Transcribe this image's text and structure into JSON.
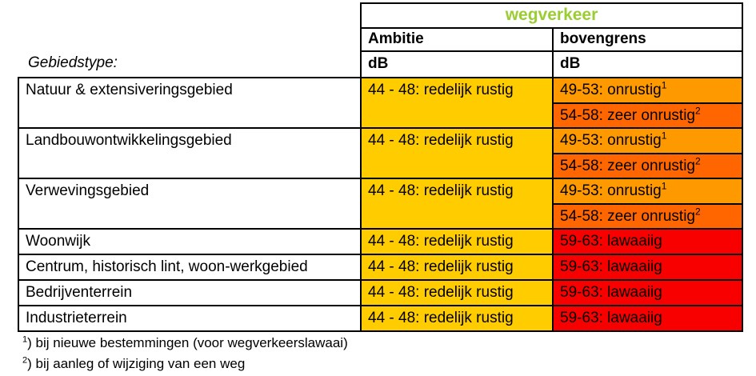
{
  "colors": {
    "header_green": "#9acd32",
    "ambition_yellow": "#ffcc00",
    "upper_orange": "#ff9900",
    "upper_dark_orange": "#ff6600",
    "upper_red": "#f80000",
    "border_black": "#000000"
  },
  "header": {
    "group_title": "wegverkeer",
    "ambitie_label": "Ambitie",
    "bovengrens_label": "bovengrens",
    "unit": "dB",
    "row_label_title": "Gebiedstype:"
  },
  "rows": [
    {
      "label": "Natuur & extensiveringsgebied",
      "ambitie": "44 - 48: redelijk rustig",
      "upper": [
        {
          "text": "49-53: onrustig",
          "sup": "1",
          "color": "upper_orange"
        },
        {
          "text": "54-58: zeer onrustig",
          "sup": "2",
          "color": "upper_dark_orange"
        }
      ]
    },
    {
      "label": "Landbouwontwikkelingsgebied",
      "ambitie": "44 - 48: redelijk rustig",
      "upper": [
        {
          "text": "49-53: onrustig",
          "sup": "1",
          "color": "upper_orange"
        },
        {
          "text": "54-58: zeer onrustig",
          "sup": "2",
          "color": "upper_dark_orange"
        }
      ]
    },
    {
      "label": "Verwevingsgebied",
      "ambitie": "44 - 48: redelijk rustig",
      "upper": [
        {
          "text": "49-53: onrustig",
          "sup": "1",
          "color": "upper_orange"
        },
        {
          "text": "54-58: zeer onrustig",
          "sup": "2",
          "color": "upper_dark_orange"
        }
      ]
    },
    {
      "label": "Woonwijk",
      "ambitie": "44 - 48: redelijk rustig",
      "upper": [
        {
          "text": "59-63: lawaaiig",
          "sup": "",
          "color": "upper_red"
        }
      ]
    },
    {
      "label": "Centrum, historisch lint, woon-werkgebied",
      "ambitie": "44 - 48: redelijk rustig",
      "upper": [
        {
          "text": "59-63: lawaaiig",
          "sup": "",
          "color": "upper_red"
        }
      ]
    },
    {
      "label": "Bedrijventerrein",
      "ambitie": "44 - 48: redelijk rustig",
      "upper": [
        {
          "text": "59-63: lawaaiig",
          "sup": "",
          "color": "upper_red"
        }
      ]
    },
    {
      "label": "Industrieterrein",
      "ambitie": "44 - 48: redelijk rustig",
      "upper": [
        {
          "text": "59-63: lawaaiig",
          "sup": "",
          "color": "upper_red"
        }
      ]
    }
  ],
  "footnotes": [
    {
      "sup": "1",
      "text": ") bij nieuwe bestemmingen (voor wegverkeerslawaai)"
    },
    {
      "sup": "2",
      "text": ") bij aanleg of wijziging van een weg"
    }
  ]
}
